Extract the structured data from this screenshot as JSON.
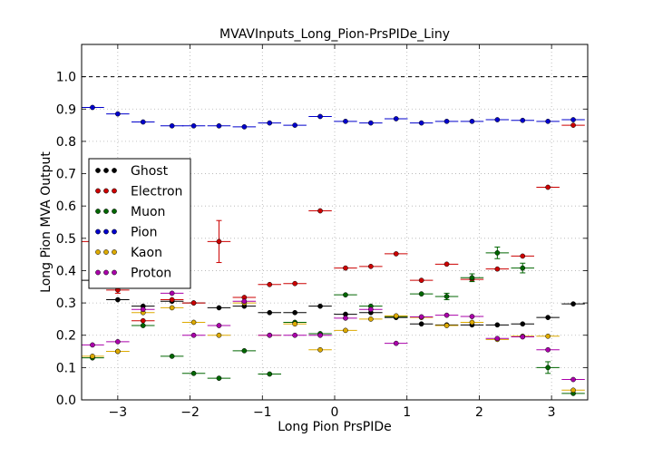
{
  "chart_data": {
    "type": "scatter",
    "title": "MVAVInputs_Long_Pion-PrsPIDe_Liny",
    "xlabel": "Long Pion PrsPIDe",
    "ylabel": "Long Pion MVA Output",
    "xlim": [
      -3.5,
      3.5
    ],
    "ylim": [
      0.0,
      1.1
    ],
    "xticks": [
      -3,
      -2,
      -1,
      0,
      1,
      2,
      3
    ],
    "xtick_labels": [
      "−3",
      "−2",
      "−1",
      "0",
      "1",
      "2",
      "3"
    ],
    "yticks": [
      0.0,
      0.1,
      0.2,
      0.3,
      0.4,
      0.5,
      0.6,
      0.7,
      0.8,
      0.9,
      1.0
    ],
    "ytick_labels": [
      "0.0",
      "0.1",
      "0.2",
      "0.3",
      "0.4",
      "0.5",
      "0.6",
      "0.7",
      "0.8",
      "0.9",
      "1.0"
    ],
    "grid": true,
    "reference_line_y": 1.0,
    "legend_position": "center-left",
    "x": [
      -3.35,
      -3.0,
      -2.65,
      -2.25,
      -1.95,
      -1.6,
      -1.25,
      -0.9,
      -0.55,
      -0.2,
      0.15,
      0.5,
      0.85,
      1.2,
      1.55,
      1.9,
      2.25,
      2.6,
      2.95,
      3.3
    ],
    "x_halfwidth": 0.16,
    "series": [
      {
        "name": "Ghost",
        "color": "#000000",
        "values": [
          0.37,
          0.31,
          0.29,
          0.305,
          0.3,
          0.285,
          0.29,
          0.27,
          0.27,
          0.29,
          0.265,
          0.27,
          0.255,
          0.235,
          0.232,
          0.232,
          0.232,
          0.235,
          0.255,
          0.297
        ]
      },
      {
        "name": "Electron",
        "color": "#cc0000",
        "values": [
          0.49,
          0.34,
          0.245,
          0.31,
          0.3,
          0.49,
          0.317,
          0.357,
          0.36,
          0.585,
          0.408,
          0.413,
          0.452,
          0.37,
          0.42,
          0.373,
          0.405,
          0.445,
          0.658,
          0.85
        ],
        "errors": [
          0,
          0.01,
          0,
          0,
          0,
          0.065,
          0,
          0,
          0,
          0,
          0,
          0,
          0,
          0,
          0,
          0,
          0,
          0,
          0,
          0
        ]
      },
      {
        "name": "Muon",
        "color": "#006600",
        "values": [
          0.13,
          0.15,
          0.23,
          0.135,
          0.082,
          0.067,
          0.152,
          0.08,
          0.24,
          0.205,
          0.325,
          0.29,
          0.258,
          0.328,
          0.32,
          0.378,
          0.455,
          0.408,
          0.1,
          0.02
        ],
        "errors": [
          0,
          0,
          0,
          0,
          0,
          0,
          0,
          0,
          0,
          0,
          0,
          0,
          0,
          0,
          0.01,
          0.012,
          0.018,
          0.015,
          0.018,
          0
        ]
      },
      {
        "name": "Pion",
        "color": "#0000cc",
        "values": [
          0.905,
          0.885,
          0.86,
          0.848,
          0.848,
          0.848,
          0.845,
          0.857,
          0.85,
          0.877,
          0.862,
          0.857,
          0.87,
          0.857,
          0.862,
          0.862,
          0.867,
          0.865,
          0.862,
          0.867
        ]
      },
      {
        "name": "Kaon",
        "color": "#ddaa00",
        "values": [
          0.135,
          0.15,
          0.27,
          0.285,
          0.24,
          0.2,
          0.3,
          0.2,
          0.235,
          0.155,
          0.215,
          0.25,
          0.26,
          0.255,
          0.23,
          0.24,
          0.187,
          0.197,
          0.197,
          0.03
        ]
      },
      {
        "name": "Proton",
        "color": "#aa00aa",
        "values": [
          0.17,
          0.18,
          0.28,
          0.33,
          0.2,
          0.23,
          0.305,
          0.2,
          0.2,
          0.2,
          0.253,
          0.28,
          0.175,
          0.257,
          0.262,
          0.258,
          0.19,
          0.195,
          0.155,
          0.063
        ]
      }
    ]
  }
}
